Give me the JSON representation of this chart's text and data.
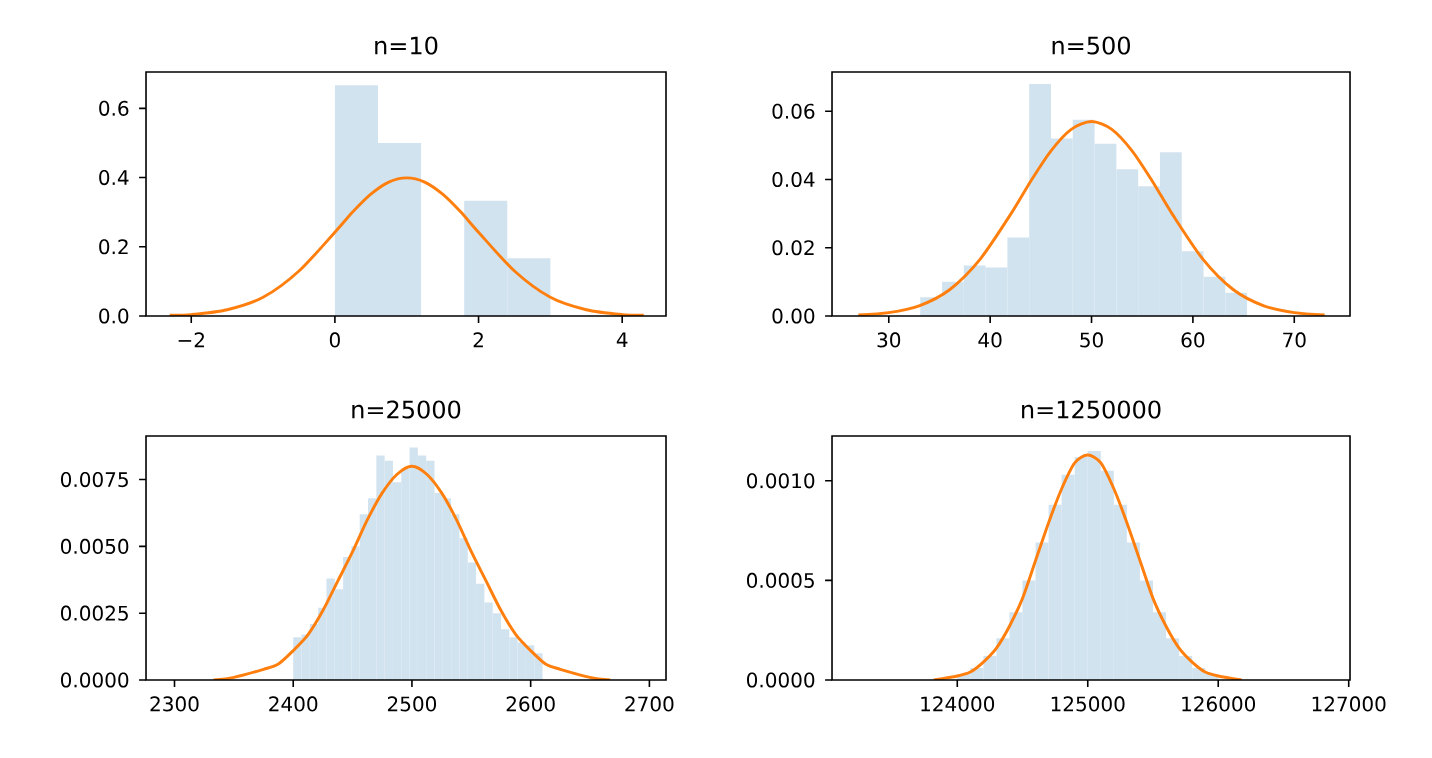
{
  "chart_data": [
    {
      "type": "histogram",
      "title": "n=10",
      "xlim": [
        -2.63,
        4.61
      ],
      "ylim": [
        0,
        0.705
      ],
      "grid": false,
      "xticks": [
        {
          "value": -2,
          "label": "−2"
        },
        0,
        2,
        4
      ],
      "yticks": [
        {
          "value": 0,
          "label": "0.0"
        },
        0.2,
        0.4,
        0.6
      ],
      "series": [
        {
          "color": "#d2e3f0",
          "bins": [
            0,
            0.6,
            1.2,
            1.8,
            2.4,
            3.0
          ],
          "values": [
            0.667,
            0.5,
            0,
            0.333,
            0.167
          ]
        },
        {
          "type": "line",
          "color": "#ff7f0e",
          "x": [
            -2.3,
            -2,
            -1.5,
            -1,
            -0.5,
            0,
            0.25,
            0.5,
            0.75,
            1,
            1.25,
            1.5,
            1.75,
            2,
            2.5,
            3,
            3.5,
            4,
            4.3
          ],
          "values": [
            0.002,
            0.004,
            0.018,
            0.054,
            0.13,
            0.242,
            0.301,
            0.352,
            0.387,
            0.399,
            0.387,
            0.352,
            0.301,
            0.242,
            0.13,
            0.054,
            0.018,
            0.004,
            0.002
          ]
        }
      ]
    },
    {
      "type": "histogram",
      "title": "n=500",
      "xlim": [
        24.4,
        75.5
      ],
      "ylim": [
        0,
        0.0715
      ],
      "grid": false,
      "xticks": [
        30,
        40,
        50,
        60,
        70
      ],
      "yticks": [
        {
          "value": 0,
          "label": "0.00"
        },
        {
          "value": 0.02,
          "label": "0.02"
        },
        {
          "value": 0.04,
          "label": "0.04"
        },
        {
          "value": 0.06,
          "label": "0.06"
        }
      ],
      "series": [
        {
          "color": "#d2e3f0",
          "bins": [
            33.1,
            35.25,
            37.4,
            39.55,
            41.7,
            43.85,
            46.0,
            48.15,
            50.3,
            52.45,
            54.6,
            56.75,
            58.9,
            61.05,
            63.2,
            65.35
          ],
          "values": [
            0.0055,
            0.01,
            0.0148,
            0.0142,
            0.023,
            0.068,
            0.052,
            0.0575,
            0.0505,
            0.043,
            0.038,
            0.048,
            0.019,
            0.0115,
            0.0068
          ]
        },
        {
          "type": "line",
          "color": "#ff7f0e",
          "x": [
            27,
            30,
            33,
            36,
            39,
            42,
            44,
            46,
            48,
            50,
            52,
            54,
            56,
            58,
            61,
            64,
            67,
            70,
            73
          ],
          "values": [
            0.0003,
            0.001,
            0.003,
            0.0077,
            0.0166,
            0.0297,
            0.0395,
            0.0484,
            0.0547,
            0.057,
            0.0547,
            0.0484,
            0.0395,
            0.0297,
            0.0166,
            0.0077,
            0.003,
            0.001,
            0.0003
          ]
        }
      ]
    },
    {
      "type": "histogram",
      "title": "n=25000",
      "xlim": [
        2276,
        2714
      ],
      "ylim": [
        0,
        0.00913
      ],
      "grid": false,
      "xticks": [
        2300,
        2400,
        2500,
        2600,
        2700
      ],
      "yticks": [
        {
          "value": 0,
          "label": "0.0000"
        },
        {
          "value": 0.0025,
          "label": "0.0025"
        },
        {
          "value": 0.005,
          "label": "0.0050"
        },
        {
          "value": 0.0075,
          "label": "0.0075"
        }
      ],
      "series": [
        {
          "color": "#d2e3f0",
          "bins": [
            2400,
            2407,
            2414,
            2421,
            2428,
            2435,
            2442,
            2449,
            2456,
            2463,
            2470,
            2477,
            2484,
            2491,
            2498,
            2505,
            2512,
            2519,
            2526,
            2533,
            2540,
            2547,
            2554,
            2561,
            2568,
            2575,
            2582,
            2589,
            2596,
            2603,
            2610
          ],
          "values": [
            0.0016,
            0.0017,
            0.0021,
            0.0027,
            0.0038,
            0.0034,
            0.0046,
            0.005,
            0.0062,
            0.0068,
            0.0084,
            0.0082,
            0.0074,
            0.0079,
            0.0087,
            0.0084,
            0.0082,
            0.007,
            0.0068,
            0.0062,
            0.0053,
            0.0044,
            0.0036,
            0.0029,
            0.0025,
            0.0019,
            0.0016,
            0.0014,
            0.0013,
            0.001
          ]
        },
        {
          "type": "line",
          "color": "#ff7f0e",
          "x": [
            2333,
            2350,
            2375,
            2387.5,
            2400,
            2412.5,
            2425,
            2437.5,
            2450,
            2462.5,
            2475,
            2487.5,
            2500,
            2512.5,
            2525,
            2537.5,
            2550,
            2562.5,
            2575,
            2587.5,
            2600,
            2612.5,
            2625,
            2650,
            2667
          ],
          "values": [
            0,
            0.0001,
            0.0004,
            0.0006,
            0.0011,
            0.0017,
            0.0026,
            0.0037,
            0.0048,
            0.006,
            0.007,
            0.0077,
            0.008,
            0.0077,
            0.007,
            0.006,
            0.0048,
            0.0037,
            0.0026,
            0.0017,
            0.0011,
            0.0006,
            0.0004,
            0.0001,
            0
          ]
        }
      ]
    },
    {
      "type": "histogram",
      "title": "n=1250000",
      "xlim": [
        123040,
        127010
      ],
      "ylim": [
        0,
        0.001225
      ],
      "grid": false,
      "xticks": [
        124000,
        125000,
        126000,
        127000
      ],
      "yticks": [
        {
          "value": 0,
          "label": "0.0000"
        },
        {
          "value": 0.0005,
          "label": "0.0005"
        },
        {
          "value": 0.001,
          "label": "0.0010"
        }
      ],
      "series": [
        {
          "color": "#d2e3f0",
          "bins": [
            124000,
            124100,
            124200,
            124300,
            124400,
            124500,
            124600,
            124700,
            124800,
            124900,
            125000,
            125100,
            125200,
            125300,
            125400,
            125500,
            125600,
            125700,
            125800,
            125900,
            126000
          ],
          "values": [
            3e-05,
            6e-05,
            0.00012,
            0.00021,
            0.00034,
            0.0005,
            0.00069,
            0.00088,
            0.00103,
            0.00112,
            0.00115,
            0.00105,
            0.00088,
            0.00069,
            0.0005,
            0.00034,
            0.00021,
            0.00012,
            6e-05,
            3e-05
          ]
        },
        {
          "type": "line",
          "color": "#ff7f0e",
          "x": [
            123820,
            124000,
            124100,
            124200,
            124300,
            124400,
            124500,
            124600,
            124700,
            124800,
            124900,
            125000,
            125100,
            125200,
            125300,
            125400,
            125500,
            125600,
            125700,
            125800,
            125900,
            126000,
            126180
          ],
          "values": [
            0,
            2e-05,
            4e-05,
            9e-05,
            0.00016,
            0.00027,
            0.00041,
            0.0006,
            0.00079,
            0.00096,
            0.00109,
            0.00113,
            0.00109,
            0.00096,
            0.00079,
            0.0006,
            0.00041,
            0.00027,
            0.00016,
            9e-05,
            4e-05,
            2e-05,
            0
          ]
        }
      ]
    }
  ]
}
